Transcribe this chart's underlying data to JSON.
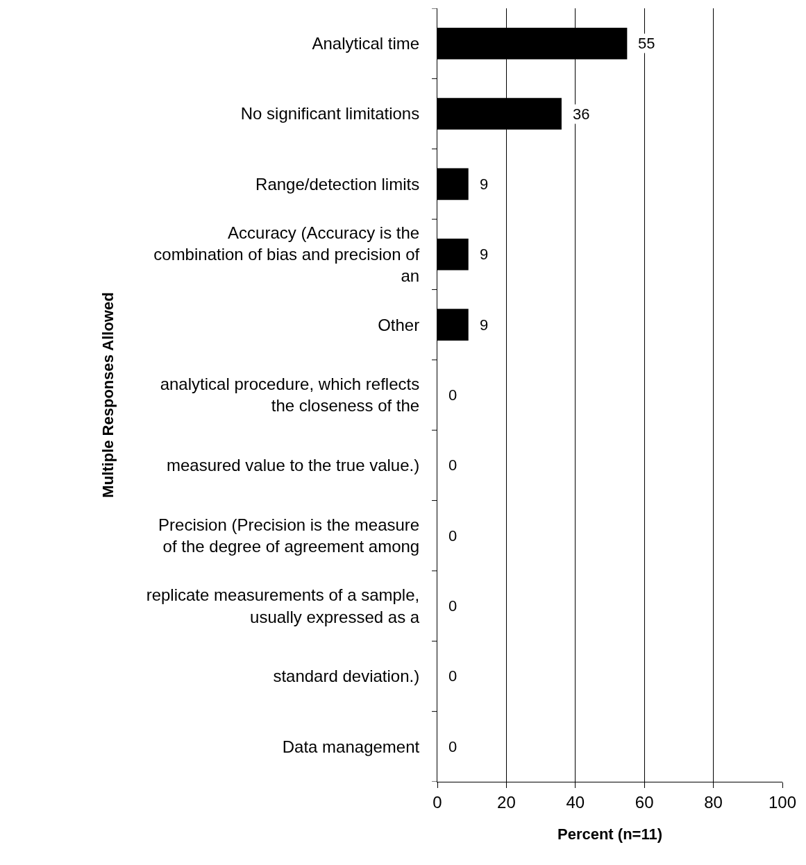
{
  "chart_data": {
    "type": "bar",
    "orientation": "horizontal",
    "xlabel": "Percent (n=11)",
    "ylabel": "Multiple Responses Allowed",
    "categories": [
      "Analytical time",
      "No significant limitations",
      "Range/detection limits",
      "Accuracy (Accuracy is the\ncombination of bias and precision of\nan",
      "Other",
      "analytical procedure, which reflects\nthe closeness of the",
      "measured value to the true value.)",
      "Precision (Precision is the measure\nof the degree of agreement among",
      "replicate measurements of a sample,\nusually expressed as a",
      "standard deviation.)",
      "Data management"
    ],
    "values": [
      55,
      36,
      9,
      9,
      9,
      0,
      0,
      0,
      0,
      0,
      0
    ],
    "color": "#000000",
    "xlim": [
      0,
      100
    ],
    "xticks": [
      0,
      20,
      40,
      60,
      80,
      100
    ],
    "grid": "x",
    "data_labels": true,
    "legend": false
  }
}
